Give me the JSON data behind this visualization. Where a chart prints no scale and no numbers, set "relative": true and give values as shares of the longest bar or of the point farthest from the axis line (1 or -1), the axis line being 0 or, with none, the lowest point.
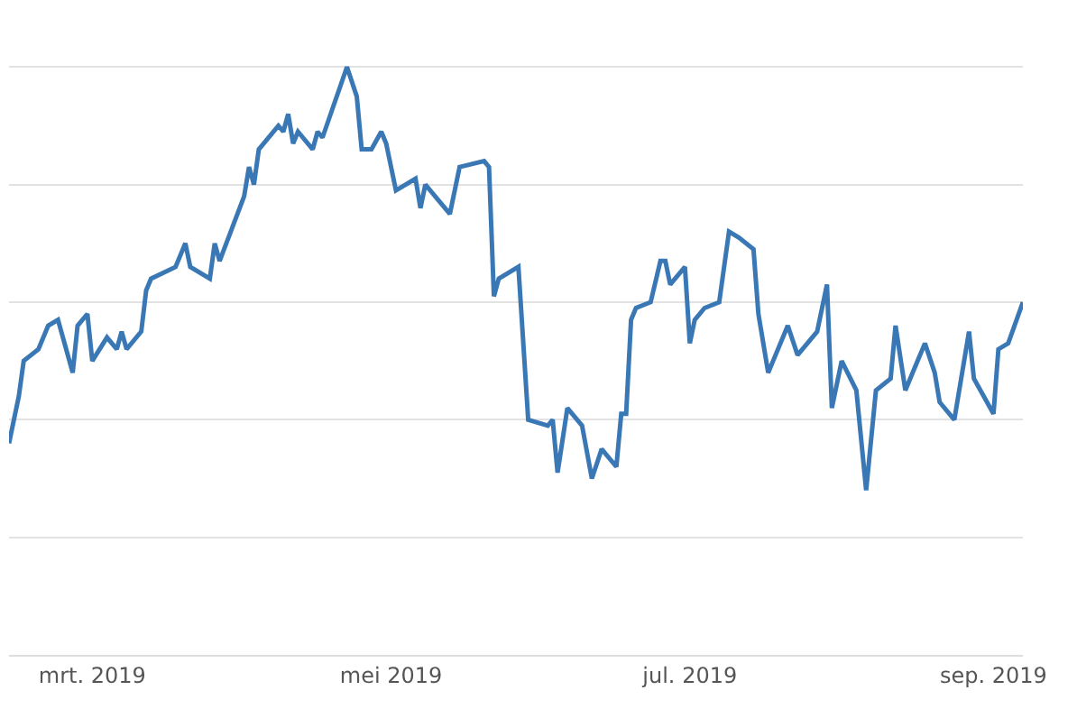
{
  "chart_data": {
    "type": "line",
    "relative": true,
    "grid": "y",
    "marker": "none",
    "line_style": "solid",
    "xlim": [
      "2019-02-12",
      "2019-09-07"
    ],
    "xticks": [
      {
        "value": "2019-03-01",
        "label": "mrt. 2019"
      },
      {
        "value": "2019-05-01",
        "label": "mei 2019"
      },
      {
        "value": "2019-07-01",
        "label": "jul. 2019"
      },
      {
        "value": "2019-09-01",
        "label": "sep. 2019"
      }
    ],
    "x": [
      "2019-02-12",
      "2019-02-14",
      "2019-02-15",
      "2019-02-18",
      "2019-02-20",
      "2019-02-22",
      "2019-02-25",
      "2019-02-26",
      "2019-02-28",
      "2019-03-01",
      "2019-03-04",
      "2019-03-06",
      "2019-03-07",
      "2019-03-08",
      "2019-03-11",
      "2019-03-12",
      "2019-03-13",
      "2019-03-18",
      "2019-03-20",
      "2019-03-21",
      "2019-03-25",
      "2019-03-26",
      "2019-03-27",
      "2019-04-01",
      "2019-04-02",
      "2019-04-03",
      "2019-04-04",
      "2019-04-08",
      "2019-04-09",
      "2019-04-10",
      "2019-04-11",
      "2019-04-12",
      "2019-04-15",
      "2019-04-16",
      "2019-04-17",
      "2019-04-22",
      "2019-04-24",
      "2019-04-25",
      "2019-04-27",
      "2019-04-29",
      "2019-04-30",
      "2019-05-02",
      "2019-05-06",
      "2019-05-07",
      "2019-05-08",
      "2019-05-13",
      "2019-05-15",
      "2019-05-20",
      "2019-05-21",
      "2019-05-22",
      "2019-05-23",
      "2019-05-27",
      "2019-05-29",
      "2019-06-02",
      "2019-06-03",
      "2019-06-04",
      "2019-06-06",
      "2019-06-09",
      "2019-06-11",
      "2019-06-13",
      "2019-06-16",
      "2019-06-17",
      "2019-06-18",
      "2019-06-19",
      "2019-06-20",
      "2019-06-23",
      "2019-06-25",
      "2019-06-26",
      "2019-06-27",
      "2019-06-30",
      "2019-07-01",
      "2019-07-02",
      "2019-07-04",
      "2019-07-07",
      "2019-07-09",
      "2019-07-11",
      "2019-07-14",
      "2019-07-15",
      "2019-07-17",
      "2019-07-18",
      "2019-07-21",
      "2019-07-23",
      "2019-07-27",
      "2019-07-29",
      "2019-07-30",
      "2019-08-01",
      "2019-08-04",
      "2019-08-06",
      "2019-08-08",
      "2019-08-11",
      "2019-08-12",
      "2019-08-14",
      "2019-08-18",
      "2019-08-20",
      "2019-08-21",
      "2019-08-24",
      "2019-08-27",
      "2019-08-28",
      "2019-09-01",
      "2019-09-02",
      "2019-09-04",
      "2019-09-07"
    ],
    "series": [
      {
        "color": "#3a78b5",
        "values": [
          0.36,
          0.44,
          0.5,
          0.52,
          0.56,
          0.57,
          0.48,
          0.56,
          0.58,
          0.5,
          0.54,
          0.52,
          0.55,
          0.52,
          0.55,
          0.62,
          0.64,
          0.66,
          0.7,
          0.66,
          0.64,
          0.7,
          0.67,
          0.78,
          0.83,
          0.8,
          0.86,
          0.9,
          0.89,
          0.92,
          0.87,
          0.89,
          0.86,
          0.89,
          0.88,
          1.0,
          0.95,
          0.86,
          0.86,
          0.89,
          0.87,
          0.79,
          0.81,
          0.76,
          0.8,
          0.75,
          0.83,
          0.84,
          0.83,
          0.61,
          0.64,
          0.66,
          0.4,
          0.39,
          0.4,
          0.31,
          0.42,
          0.39,
          0.3,
          0.35,
          0.32,
          0.41,
          0.41,
          0.57,
          0.59,
          0.6,
          0.67,
          0.67,
          0.63,
          0.66,
          0.53,
          0.57,
          0.59,
          0.6,
          0.72,
          0.71,
          0.69,
          0.58,
          0.48,
          0.5,
          0.56,
          0.51,
          0.55,
          0.63,
          0.42,
          0.5,
          0.45,
          0.28,
          0.45,
          0.47,
          0.56,
          0.45,
          0.53,
          0.48,
          0.43,
          0.4,
          0.55,
          0.47,
          0.41,
          0.52,
          0.53,
          0.6
        ]
      }
    ]
  }
}
